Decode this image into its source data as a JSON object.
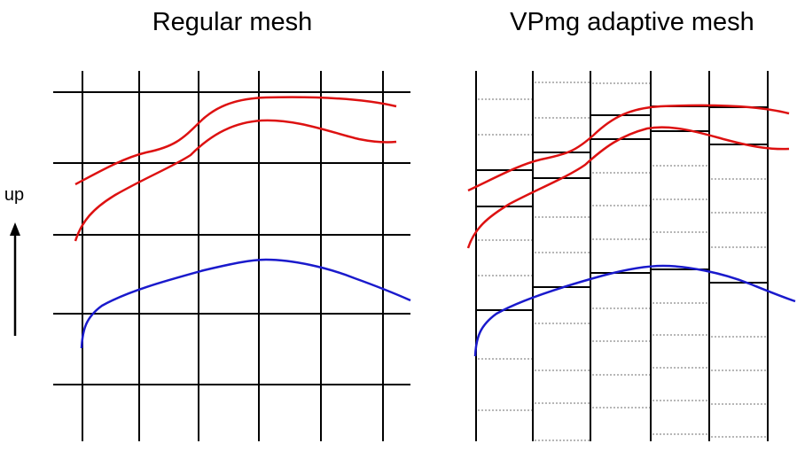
{
  "titles": {
    "left": "Regular mesh",
    "right": "VPmg adaptive mesh"
  },
  "axis_hint": {
    "label": "up",
    "icon": "up-arrow-icon"
  },
  "colors": {
    "grid": "#000000",
    "dotted_grid": "#8c8c8c",
    "curve_red": "#dd1111",
    "curve_blue": "#1a1acc",
    "background": "#ffffff"
  },
  "panels": [
    {
      "name": "regular-mesh",
      "mesh_type": "regular",
      "curves": [
        "red",
        "red",
        "blue"
      ]
    },
    {
      "name": "vpmg-adaptive-mesh",
      "mesh_type": "adaptive",
      "curves": [
        "red",
        "red",
        "blue"
      ]
    }
  ]
}
